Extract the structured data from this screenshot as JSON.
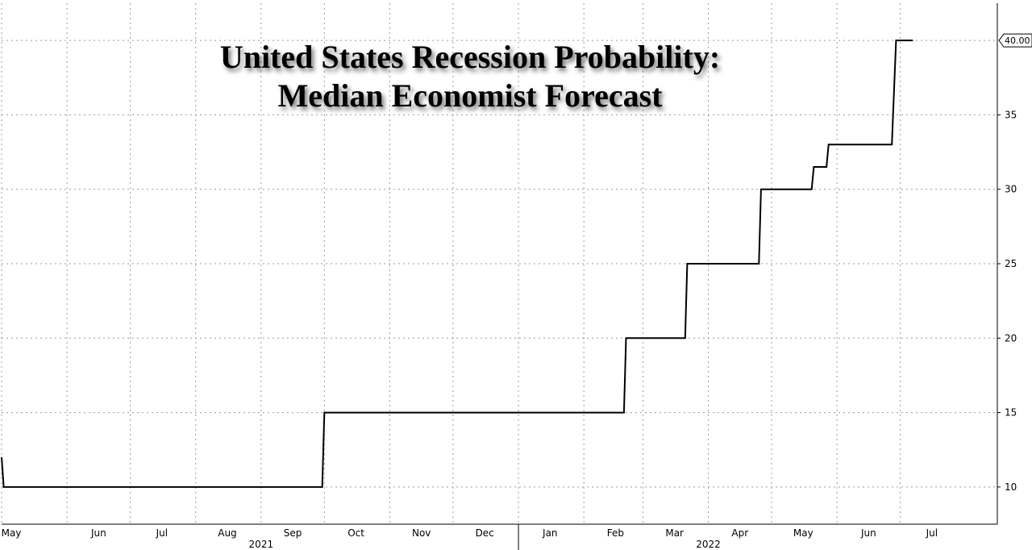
{
  "chart_data": {
    "type": "line",
    "title_lines": [
      "United States Recession Probability:",
      "Median Economist Forecast"
    ],
    "xlabel": "",
    "ylabel": "",
    "x_tick_labels": [
      "May",
      "Jun",
      "Jul",
      "Aug",
      "Sep",
      "Oct",
      "Nov",
      "Dec",
      "Jan",
      "Feb",
      "Mar",
      "Apr",
      "May",
      "Jun",
      "Jul"
    ],
    "x_tick_dates": [
      "2021-05-01",
      "2021-06-01",
      "2021-07-01",
      "2021-08-01",
      "2021-09-01",
      "2021-10-01",
      "2021-11-01",
      "2021-12-01",
      "2022-01-01",
      "2022-02-01",
      "2022-03-01",
      "2022-04-01",
      "2022-05-01",
      "2022-06-01",
      "2022-07-01"
    ],
    "year_labels": [
      {
        "label": "2021",
        "date": "2021-09-01"
      },
      {
        "label": "2022",
        "date": "2022-04-01"
      }
    ],
    "xlim": [
      "2021-05-01",
      "2022-08-16"
    ],
    "ylim": [
      7.5,
      42.5
    ],
    "y_ticks": [
      10,
      15,
      20,
      25,
      30,
      35
    ],
    "y_tick_labels": [
      "10",
      "15",
      "20",
      "25",
      "30",
      "35"
    ],
    "last_value_label": "40.00",
    "grid": true,
    "series": [
      {
        "points": [
          {
            "x": "2021-05-01",
            "y": 12
          },
          {
            "x": "2021-05-02",
            "y": 10
          },
          {
            "x": "2021-09-30",
            "y": 10
          },
          {
            "x": "2021-10-01",
            "y": 15
          },
          {
            "x": "2022-02-20",
            "y": 15
          },
          {
            "x": "2022-02-21",
            "y": 20
          },
          {
            "x": "2022-03-21",
            "y": 20
          },
          {
            "x": "2022-03-22",
            "y": 25
          },
          {
            "x": "2022-04-25",
            "y": 25
          },
          {
            "x": "2022-04-26",
            "y": 30
          },
          {
            "x": "2022-05-20",
            "y": 30
          },
          {
            "x": "2022-05-21",
            "y": 31.5
          },
          {
            "x": "2022-05-27",
            "y": 31.5
          },
          {
            "x": "2022-05-28",
            "y": 33
          },
          {
            "x": "2022-06-27",
            "y": 33
          },
          {
            "x": "2022-06-29",
            "y": 40
          },
          {
            "x": "2022-07-07",
            "y": 40
          }
        ]
      }
    ]
  }
}
